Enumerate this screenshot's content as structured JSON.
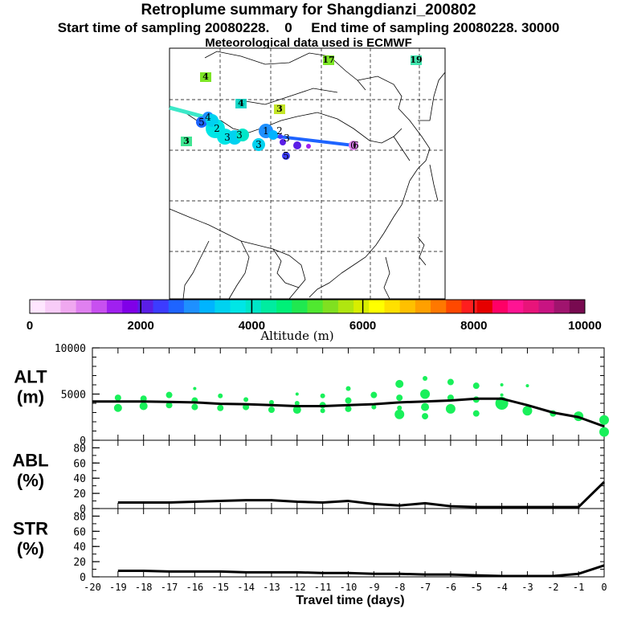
{
  "header": {
    "title": "Retroplume summary for Shangdianzi_200802",
    "subtitle": "Start time of sampling 20080228.    0     End time of sampling 20080228. 30000",
    "met": "Meteorological data used is ECMWF"
  },
  "map": {
    "numbered_labels": [
      {
        "text": "4",
        "color": "#66e000"
      },
      {
        "text": "4",
        "color": "#00d0c0"
      },
      {
        "text": "3",
        "color": "#b8e000"
      },
      {
        "text": "17",
        "color": "#66e000"
      },
      {
        "text": "19",
        "color": "#20e0a0"
      },
      {
        "text": "3",
        "color": "#20e080"
      }
    ],
    "trajectory_labels": [
      "5",
      "4",
      "2",
      "3",
      "3",
      "3",
      "1",
      "2",
      "3",
      "5",
      "6",
      "0"
    ]
  },
  "colorbar": {
    "tick_labels": [
      "0",
      "2000",
      "4000",
      "6000",
      "8000",
      "10000"
    ],
    "label": "Altitude (m)",
    "colors": [
      "#ffe6ff",
      "#f8ccf8",
      "#f0a8f0",
      "#e080f0",
      "#c850f0",
      "#a020f0",
      "#8000e8",
      "#5a1ee6",
      "#3c3cff",
      "#1e64ff",
      "#1e90ff",
      "#00b4ff",
      "#00d2f0",
      "#00e6e6",
      "#00e6c8",
      "#00eca0",
      "#00f078",
      "#20e850",
      "#50e830",
      "#80e020",
      "#b0e610",
      "#d8ee00",
      "#ffff00",
      "#ffe000",
      "#ffc000",
      "#ffa000",
      "#ff7800",
      "#ff4800",
      "#ff1e1e",
      "#e60000",
      "#ff0066",
      "#ff1493",
      "#e8147a",
      "#c81482",
      "#a0146e",
      "#780a50"
    ]
  },
  "chart_data": [
    {
      "type": "line",
      "name": "ALT",
      "ylabel_top": "ALT",
      "ylabel_unit": "(m)",
      "ylim": [
        0,
        10000
      ],
      "yticks_labeled": [
        "10000",
        "5000",
        "0"
      ],
      "x": [
        -20,
        -19,
        -18,
        -17,
        -16,
        -15,
        -14,
        -13,
        -12,
        -11,
        -10,
        -9,
        -8,
        -7,
        -6,
        -5,
        -4,
        -3,
        -2,
        -1,
        0
      ],
      "values": [
        4200,
        4200,
        4200,
        4150,
        4100,
        3950,
        3900,
        3800,
        3700,
        3700,
        3800,
        3900,
        4100,
        4200,
        4300,
        4500,
        4500,
        3800,
        3000,
        2500,
        1500
      ],
      "scatter": [
        {
          "x": -19,
          "y": 4600,
          "r": 4
        },
        {
          "x": -19,
          "y": 3500,
          "r": 5
        },
        {
          "x": -18,
          "y": 4500,
          "r": 4
        },
        {
          "x": -18,
          "y": 3700,
          "r": 5
        },
        {
          "x": -17,
          "y": 4900,
          "r": 4
        },
        {
          "x": -17,
          "y": 3800,
          "r": 4
        },
        {
          "x": -16,
          "y": 5600,
          "r": 2
        },
        {
          "x": -16,
          "y": 4300,
          "r": 4
        },
        {
          "x": -16,
          "y": 3600,
          "r": 4
        },
        {
          "x": -15,
          "y": 4800,
          "r": 3
        },
        {
          "x": -15,
          "y": 3500,
          "r": 4
        },
        {
          "x": -14,
          "y": 4400,
          "r": 3
        },
        {
          "x": -14,
          "y": 3600,
          "r": 4
        },
        {
          "x": -13,
          "y": 4100,
          "r": 3
        },
        {
          "x": -13,
          "y": 3300,
          "r": 4
        },
        {
          "x": -12,
          "y": 5000,
          "r": 2
        },
        {
          "x": -12,
          "y": 4000,
          "r": 3
        },
        {
          "x": -12,
          "y": 3300,
          "r": 5
        },
        {
          "x": -11,
          "y": 4800,
          "r": 3
        },
        {
          "x": -11,
          "y": 3800,
          "r": 4
        },
        {
          "x": -11,
          "y": 3200,
          "r": 3
        },
        {
          "x": -10,
          "y": 5600,
          "r": 3
        },
        {
          "x": -10,
          "y": 4300,
          "r": 4
        },
        {
          "x": -10,
          "y": 3400,
          "r": 4
        },
        {
          "x": -9,
          "y": 4900,
          "r": 4
        },
        {
          "x": -9,
          "y": 3600,
          "r": 3
        },
        {
          "x": -8,
          "y": 6100,
          "r": 5
        },
        {
          "x": -8,
          "y": 4600,
          "r": 4
        },
        {
          "x": -8,
          "y": 3500,
          "r": 3
        },
        {
          "x": -8,
          "y": 2800,
          "r": 6
        },
        {
          "x": -7,
          "y": 6700,
          "r": 3
        },
        {
          "x": -7,
          "y": 5000,
          "r": 6
        },
        {
          "x": -7,
          "y": 3600,
          "r": 5
        },
        {
          "x": -7,
          "y": 2600,
          "r": 4
        },
        {
          "x": -6,
          "y": 6300,
          "r": 4
        },
        {
          "x": -6,
          "y": 4600,
          "r": 4
        },
        {
          "x": -6,
          "y": 3400,
          "r": 6
        },
        {
          "x": -5,
          "y": 5900,
          "r": 4
        },
        {
          "x": -5,
          "y": 4400,
          "r": 4
        },
        {
          "x": -5,
          "y": 2900,
          "r": 4
        },
        {
          "x": -4,
          "y": 6000,
          "r": 2
        },
        {
          "x": -4,
          "y": 4900,
          "r": 2
        },
        {
          "x": -4,
          "y": 4000,
          "r": 8
        },
        {
          "x": -3,
          "y": 5900,
          "r": 2
        },
        {
          "x": -3,
          "y": 3200,
          "r": 6
        },
        {
          "x": -2,
          "y": 2900,
          "r": 4
        },
        {
          "x": -1,
          "y": 2600,
          "r": 6
        },
        {
          "x": 0,
          "y": 2200,
          "r": 6
        },
        {
          "x": 0,
          "y": 900,
          "r": 6
        }
      ]
    },
    {
      "type": "line",
      "name": "ABL",
      "ylabel_top": "ABL",
      "ylabel_unit": "(%)",
      "ylim": [
        0,
        90
      ],
      "yticks_labeled": [
        "80",
        "60",
        "40",
        "20",
        "0"
      ],
      "x": [
        -19,
        -18,
        -17,
        -16,
        -15,
        -14,
        -13,
        -12,
        -11,
        -10,
        -9,
        -8,
        -7,
        -6,
        -5,
        -4,
        -3,
        -2,
        -1,
        0
      ],
      "values": [
        8,
        8,
        8,
        9,
        10,
        11,
        11,
        9,
        8,
        10,
        6,
        4,
        7,
        3,
        2,
        2,
        2,
        2,
        2,
        35
      ]
    },
    {
      "type": "line",
      "name": "STR",
      "ylabel_top": "STR",
      "ylabel_unit": "(%)",
      "ylim": [
        0,
        90
      ],
      "yticks_labeled": [
        "80",
        "60",
        "40",
        "20",
        "0"
      ],
      "xlabel": "Travel time (days)",
      "xticks": [
        "-20",
        "-19",
        "-18",
        "-17",
        "-16",
        "-15",
        "-14",
        "-13",
        "-12",
        "-11",
        "-10",
        "-9",
        "-8",
        "-7",
        "-6",
        "-5",
        "-4",
        "-3",
        "-2",
        "-1",
        "0"
      ],
      "x": [
        -19,
        -18,
        -17,
        -16,
        -15,
        -14,
        -13,
        -12,
        -11,
        -10,
        -9,
        -8,
        -7,
        -6,
        -5,
        -4,
        -3,
        -2,
        -1,
        0
      ],
      "values": [
        8,
        8,
        7,
        7,
        7,
        6,
        6,
        6,
        5,
        5,
        4,
        4,
        3,
        3,
        2,
        1,
        1,
        1,
        4,
        15
      ]
    }
  ]
}
